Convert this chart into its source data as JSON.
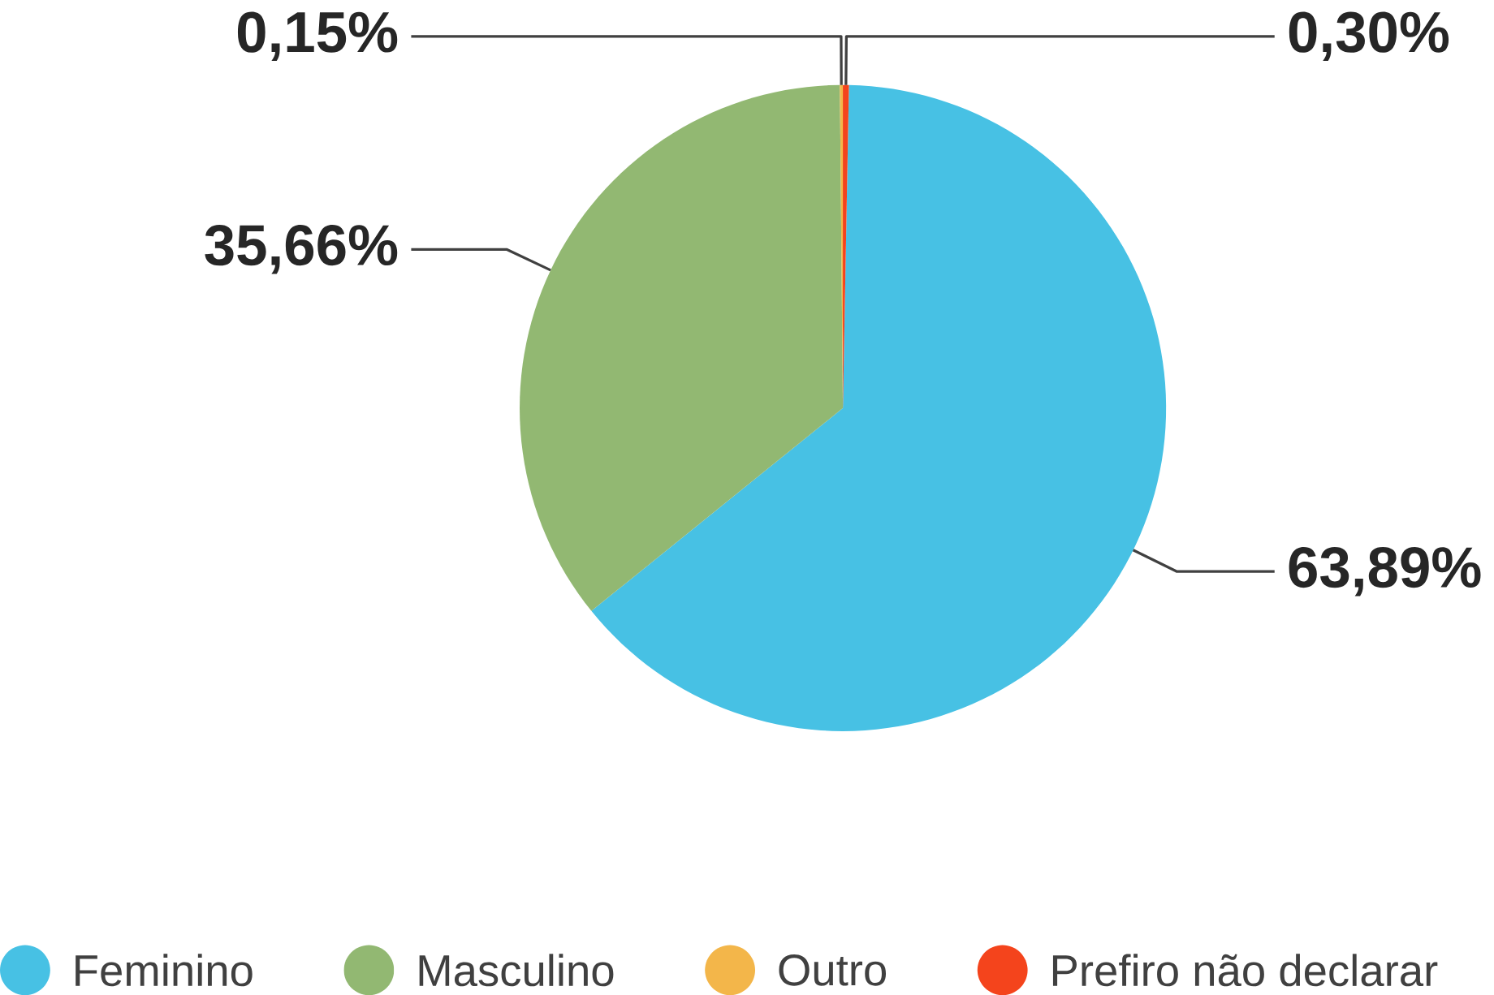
{
  "chart_data": {
    "type": "pie",
    "categories": [
      "Feminino",
      "Masculino",
      "Outro",
      "Prefiro não declarar"
    ],
    "values": [
      63.89,
      35.66,
      0.15,
      0.3
    ],
    "value_labels": [
      "63,89%",
      "35,66%",
      "0,15%",
      "0,30%"
    ],
    "colors": [
      "#47c1e4",
      "#92b872",
      "#f3b64a",
      "#f4441c"
    ],
    "legend": "bottom"
  }
}
